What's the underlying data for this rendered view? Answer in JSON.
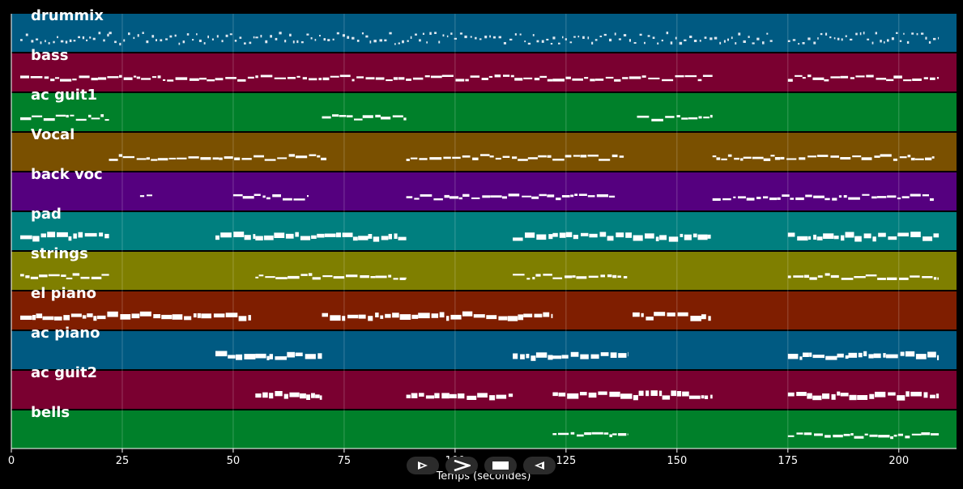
{
  "chart_data": {
    "type": "timeline",
    "xlabel": "Temps (secondes)",
    "xlim": [
      0,
      213
    ],
    "xticks": [
      0,
      25,
      50,
      75,
      100,
      125,
      150,
      175,
      200
    ],
    "grid": true,
    "tracks": [
      {
        "name": "drummix",
        "color": "#005a82",
        "segments": [
          [
            2,
            22
          ],
          [
            22,
            55
          ],
          [
            55,
            88
          ],
          [
            88,
            122
          ],
          [
            122,
            172
          ],
          [
            175,
            209
          ]
        ]
      },
      {
        "name": "bass",
        "color": "#7a0030",
        "segments": [
          [
            2,
            55
          ],
          [
            55,
            122
          ],
          [
            122,
            158
          ],
          [
            175,
            209
          ]
        ]
      },
      {
        "name": "ac guit1",
        "color": "#00802a",
        "segments": [
          [
            2,
            22
          ],
          [
            70,
            89
          ],
          [
            141,
            158
          ]
        ]
      },
      {
        "name": "Vocal",
        "color": "#7a5000",
        "segments": [
          [
            22,
            71
          ],
          [
            89,
            138
          ],
          [
            158,
            208
          ]
        ]
      },
      {
        "name": "back voc",
        "color": "#55007f",
        "segments": [
          [
            29,
            32
          ],
          [
            50,
            67
          ],
          [
            89,
            136
          ],
          [
            158,
            208
          ]
        ]
      },
      {
        "name": "pad",
        "color": "#007f7f",
        "segments": [
          [
            2,
            22
          ],
          [
            46,
            55
          ],
          [
            55,
            89
          ],
          [
            113,
            122
          ],
          [
            122,
            158
          ],
          [
            175,
            209
          ]
        ]
      },
      {
        "name": "strings",
        "color": "#7f7f00",
        "segments": [
          [
            2,
            22
          ],
          [
            55,
            89
          ],
          [
            113,
            122
          ],
          [
            122,
            139
          ],
          [
            175,
            209
          ]
        ]
      },
      {
        "name": "el piano",
        "color": "#7f1e00",
        "segments": [
          [
            2,
            54
          ],
          [
            70,
            122
          ],
          [
            140,
            158
          ]
        ]
      },
      {
        "name": "ac piano",
        "color": "#005a82",
        "segments": [
          [
            46,
            55
          ],
          [
            55,
            70
          ],
          [
            113,
            122
          ],
          [
            122,
            139
          ],
          [
            175,
            209
          ]
        ]
      },
      {
        "name": "ac guit2",
        "color": "#7a0030",
        "segments": [
          [
            55,
            70
          ],
          [
            89,
            113
          ],
          [
            122,
            158
          ],
          [
            175,
            209
          ]
        ]
      },
      {
        "name": "bells",
        "color": "#00802a",
        "segments": [
          [
            122,
            139
          ],
          [
            175,
            209
          ]
        ]
      }
    ]
  },
  "controls": [
    {
      "name": "play-button",
      "icon": "play-outline-icon"
    },
    {
      "name": "fast-forward-button",
      "icon": "chevron-right-icon"
    },
    {
      "name": "stop-button",
      "icon": "stop-icon"
    },
    {
      "name": "rewind-button",
      "icon": "rewind-outline-icon"
    }
  ]
}
